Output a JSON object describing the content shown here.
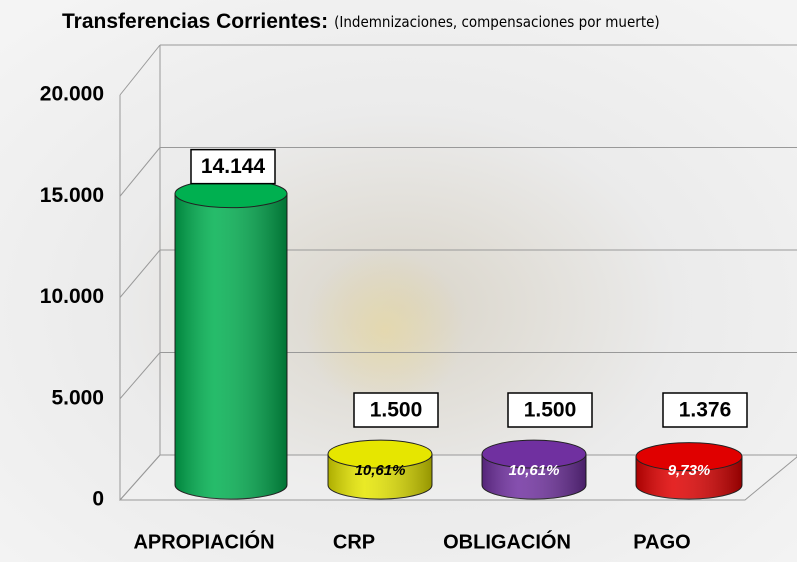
{
  "chart_data": {
    "type": "bar3d",
    "title": "Transferencias Corrientes:",
    "subtitle": "(Indemnizaciones, compensaciones por muerte)",
    "categories": [
      "APROPIACIÓN",
      "CRP",
      "OBLIGACIÓN",
      "PAGO"
    ],
    "values": [
      14144,
      1500,
      1500,
      1376
    ],
    "value_labels": [
      "14.144",
      "1.500",
      "1.500",
      "1.376"
    ],
    "percent_labels": [
      null,
      "10,61%",
      "10,61%",
      "9,73%"
    ],
    "colors": [
      "#00b050",
      "#e6e600",
      "#7030a0",
      "#e00000"
    ],
    "ylim": [
      0,
      20000
    ],
    "yticks": [
      0,
      {
        "value": 5000,
        "label": "5.000"
      },
      {
        "value": 10000,
        "label": "10.000"
      },
      {
        "value": 15000,
        "label": "15.000"
      },
      {
        "value": 20000,
        "label": "20.000"
      }
    ],
    "grid": true
  }
}
